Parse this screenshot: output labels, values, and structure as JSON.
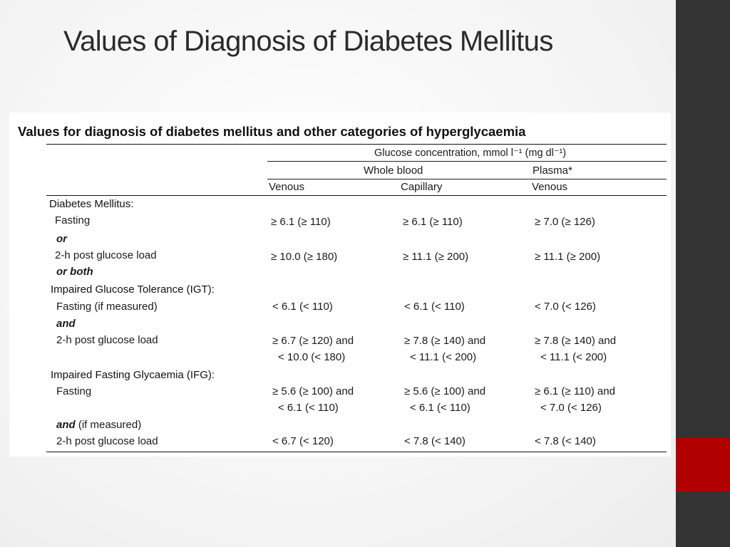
{
  "slide": {
    "title": "Values of Diagnosis of Diabetes Mellitus",
    "colors": {
      "side_bar": "#333333",
      "accent": "#b00000"
    }
  },
  "table": {
    "caption": "Values for diagnosis of diabetes mellitus and other categories of hyperglycaemia",
    "header": {
      "group": "Glucose concentration, mmol l⁻¹ (mg dl⁻¹)",
      "whole_blood": "Whole blood",
      "plasma": "Plasma*",
      "col_venous": "Venous",
      "col_capillary": "Capillary",
      "col_plasma_venous": "Venous"
    },
    "dm": {
      "title": "Diabetes Mellitus:",
      "fasting_label": "Fasting",
      "fasting": [
        "≥ 6.1 (≥ 110)",
        "≥ 6.1 (≥ 110)",
        "≥ 7.0 (≥ 126)"
      ],
      "or": "or",
      "post_label": "2-h post glucose load",
      "post": [
        "≥ 10.0 (≥ 180)",
        "≥ 11.1 (≥ 200)",
        "≥ 11.1 (≥ 200)"
      ],
      "or_both": "or both"
    },
    "igt": {
      "title": "Impaired Glucose Tolerance (IGT):",
      "fasting_label": "Fasting (if measured)",
      "fasting": [
        "< 6.1 (< 110)",
        "< 6.1 (< 110)",
        "< 7.0 (< 126)"
      ],
      "and": "and",
      "post_label": "2-h post glucose load",
      "post_line1": [
        "≥ 6.7 (≥ 120) and",
        "≥ 7.8 (≥ 140) and",
        "≥ 7.8 (≥ 140) and"
      ],
      "post_line2": [
        "< 10.0 (< 180)",
        "< 11.1 (< 200)",
        "< 11.1 (< 200)"
      ]
    },
    "ifg": {
      "title": "Impaired Fasting Glycaemia (IFG):",
      "fasting_label": "Fasting",
      "fasting_line1": [
        "≥ 5.6 (≥ 100) and",
        "≥ 5.6 (≥ 100) and",
        "≥ 6.1 (≥ 110) and"
      ],
      "fasting_line2": [
        "< 6.1 (< 110)",
        "< 6.1 (< 110)",
        "< 7.0 (< 126)"
      ],
      "and": "and",
      "if_measured": "(if measured)",
      "post_label": "2-h post glucose load",
      "post": [
        "< 6.7 (< 120)",
        "< 7.8 (< 140)",
        "< 7.8 (< 140)"
      ]
    }
  }
}
